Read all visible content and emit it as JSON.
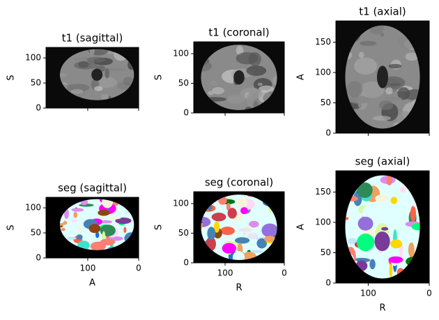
{
  "chart_data": [
    {
      "type": "image",
      "title": "t1 (sagittal)",
      "ylabel": "S",
      "xlim": [
        182,
        0
      ],
      "ylim": [
        0,
        121
      ],
      "xticks": [
        100,
        0
      ],
      "yticks": [
        0,
        50,
        100
      ],
      "xtick_labels": false,
      "style": "t1",
      "view": "sagittal"
    },
    {
      "type": "image",
      "title": "t1 (coronal)",
      "ylabel": "S",
      "xlim": [
        153,
        0
      ],
      "ylim": [
        0,
        120
      ],
      "xticks": [
        100,
        0
      ],
      "yticks": [
        0,
        50,
        100
      ],
      "xtick_labels": false,
      "style": "t1",
      "view": "coronal"
    },
    {
      "type": "image",
      "title": "t1 (axial)",
      "ylabel": "A",
      "xlim": [
        153,
        0
      ],
      "ylim": [
        0,
        185
      ],
      "xticks": [
        100,
        0
      ],
      "yticks": [
        0,
        50,
        100,
        150
      ],
      "xtick_labels": false,
      "style": "t1",
      "view": "axial"
    },
    {
      "type": "image",
      "title": "seg (sagittal)",
      "xlabel": "A",
      "ylabel": "S",
      "xlim": [
        182,
        0
      ],
      "ylim": [
        0,
        121
      ],
      "xticks": [
        100,
        0
      ],
      "yticks": [
        0,
        50,
        100
      ],
      "xtick_labels": true,
      "style": "seg",
      "view": "sagittal"
    },
    {
      "type": "image",
      "title": "seg (coronal)",
      "xlabel": "R",
      "ylabel": "S",
      "xlim": [
        153,
        0
      ],
      "ylim": [
        0,
        120
      ],
      "xticks": [
        100,
        0
      ],
      "yticks": [
        0,
        50,
        100
      ],
      "xtick_labels": true,
      "style": "seg",
      "view": "coronal"
    },
    {
      "type": "image",
      "title": "seg (axial)",
      "xlabel": "R",
      "ylabel": "A",
      "xlim": [
        153,
        0
      ],
      "ylim": [
        0,
        185
      ],
      "xticks": [
        100,
        0
      ],
      "yticks": [
        0,
        50,
        100,
        150
      ],
      "xtick_labels": true,
      "style": "seg",
      "view": "axial"
    }
  ]
}
